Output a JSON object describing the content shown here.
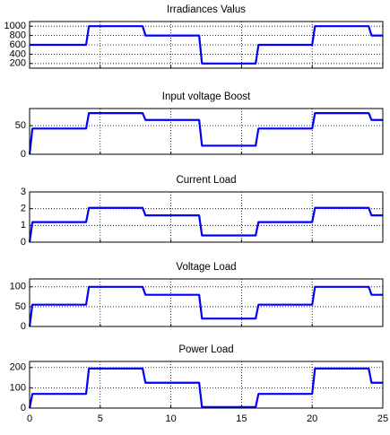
{
  "chart_data": [
    {
      "type": "line",
      "title": "Irradiances Valus",
      "x": [
        0,
        0.2,
        4,
        4.2,
        8,
        8.2,
        12,
        12.2,
        16,
        16.2,
        20,
        20.2,
        24,
        24.2,
        25
      ],
      "series": [
        {
          "color": "#0000ff",
          "values": [
            600,
            600,
            600,
            1000,
            1000,
            800,
            800,
            200,
            200,
            600,
            600,
            1000,
            1000,
            800,
            800
          ]
        }
      ],
      "xlim": [
        0,
        25
      ],
      "ylim": [
        100,
        1100
      ],
      "yticks": [
        200,
        400,
        600,
        800,
        1000
      ],
      "grid": true
    },
    {
      "type": "line",
      "title": "Input voltage Boost",
      "x": [
        0,
        0.2,
        4,
        4.2,
        8,
        8.2,
        12,
        12.2,
        16,
        16.2,
        20,
        20.2,
        24,
        24.2,
        25
      ],
      "series": [
        {
          "color": "#0000ff",
          "values": [
            0,
            45,
            45,
            72,
            72,
            60,
            60,
            15,
            15,
            45,
            45,
            72,
            72,
            60,
            60
          ]
        }
      ],
      "xlim": [
        0,
        25
      ],
      "ylim": [
        0,
        80
      ],
      "yticks": [
        0,
        50
      ],
      "grid": true
    },
    {
      "type": "line",
      "title": "Current Load",
      "x": [
        0,
        0.2,
        4,
        4.2,
        8,
        8.2,
        12,
        12.2,
        16,
        16.2,
        20,
        20.2,
        24,
        24.2,
        25
      ],
      "series": [
        {
          "color": "#0000ff",
          "values": [
            0,
            1.2,
            1.2,
            2.05,
            2.05,
            1.6,
            1.6,
            0.4,
            0.4,
            1.2,
            1.2,
            2.05,
            2.05,
            1.6,
            1.6
          ]
        }
      ],
      "xlim": [
        0,
        25
      ],
      "ylim": [
        0,
        3
      ],
      "yticks": [
        0,
        1,
        2,
        3
      ],
      "grid": true
    },
    {
      "type": "line",
      "title": "Voltage Load",
      "x": [
        0,
        0.2,
        4,
        4.2,
        8,
        8.2,
        12,
        12.2,
        16,
        16.2,
        20,
        20.2,
        24,
        24.2,
        25
      ],
      "series": [
        {
          "color": "#0000ff",
          "values": [
            0,
            55,
            55,
            100,
            100,
            80,
            80,
            20,
            20,
            55,
            55,
            100,
            100,
            80,
            80
          ]
        }
      ],
      "xlim": [
        0,
        25
      ],
      "ylim": [
        0,
        120
      ],
      "yticks": [
        0,
        50,
        100
      ],
      "grid": true
    },
    {
      "type": "line",
      "title": "Power Load",
      "x": [
        0,
        0.2,
        4,
        4.2,
        8,
        8.2,
        12,
        12.2,
        16,
        16.2,
        20,
        20.2,
        24,
        24.2,
        25
      ],
      "series": [
        {
          "color": "#0000ff",
          "values": [
            0,
            70,
            70,
            195,
            195,
            125,
            125,
            5,
            5,
            70,
            70,
            195,
            195,
            125,
            125
          ]
        }
      ],
      "xlim": [
        0,
        25
      ],
      "ylim": [
        0,
        230
      ],
      "yticks": [
        0,
        100,
        200
      ],
      "xticks": [
        0,
        5,
        10,
        15,
        20,
        25
      ],
      "grid": true
    }
  ]
}
